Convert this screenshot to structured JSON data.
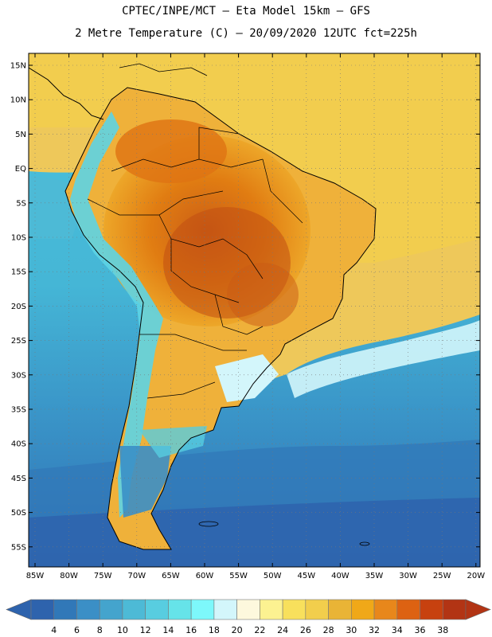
{
  "header": {
    "title_line1": "CPTEC/INPE/MCT –  Eta Model 15km – GFS",
    "title_line2": "2 Metre Temperature (C) – 20/09/2020 12UTC fct=225h"
  },
  "map": {
    "lat_labels": [
      "15N",
      "10N",
      "5N",
      "EQ",
      "5S",
      "10S",
      "15S",
      "20S",
      "25S",
      "30S",
      "35S",
      "40S",
      "45S",
      "50S",
      "55S"
    ],
    "lon_labels": [
      "85W",
      "80W",
      "75W",
      "70W",
      "65W",
      "60W",
      "55W",
      "50W",
      "45W",
      "40W",
      "35W",
      "30W",
      "25W",
      "20W"
    ],
    "ocean_color": "#3bb0d0",
    "land_hot_color": "#e07a10"
  },
  "colorbar": {
    "labels": [
      "4",
      "6",
      "8",
      "10",
      "12",
      "14",
      "16",
      "18",
      "20",
      "22",
      "24",
      "26",
      "28",
      "30",
      "32",
      "34",
      "36",
      "38"
    ],
    "colors": [
      "#2e63ad",
      "#3178b8",
      "#3b8fc6",
      "#44a4cd",
      "#4dbad6",
      "#58cde0",
      "#66e3e9",
      "#7df8fb",
      "#d3f6fb",
      "#fdf8dd",
      "#fcf291",
      "#f8e05c",
      "#f2ce4c",
      "#e9b436",
      "#f0a818",
      "#e8871b",
      "#dd6212",
      "#c7410f",
      "#b23414"
    ],
    "left_arrow_color": "#2e63ad",
    "right_arrow_color": "#b23414"
  }
}
